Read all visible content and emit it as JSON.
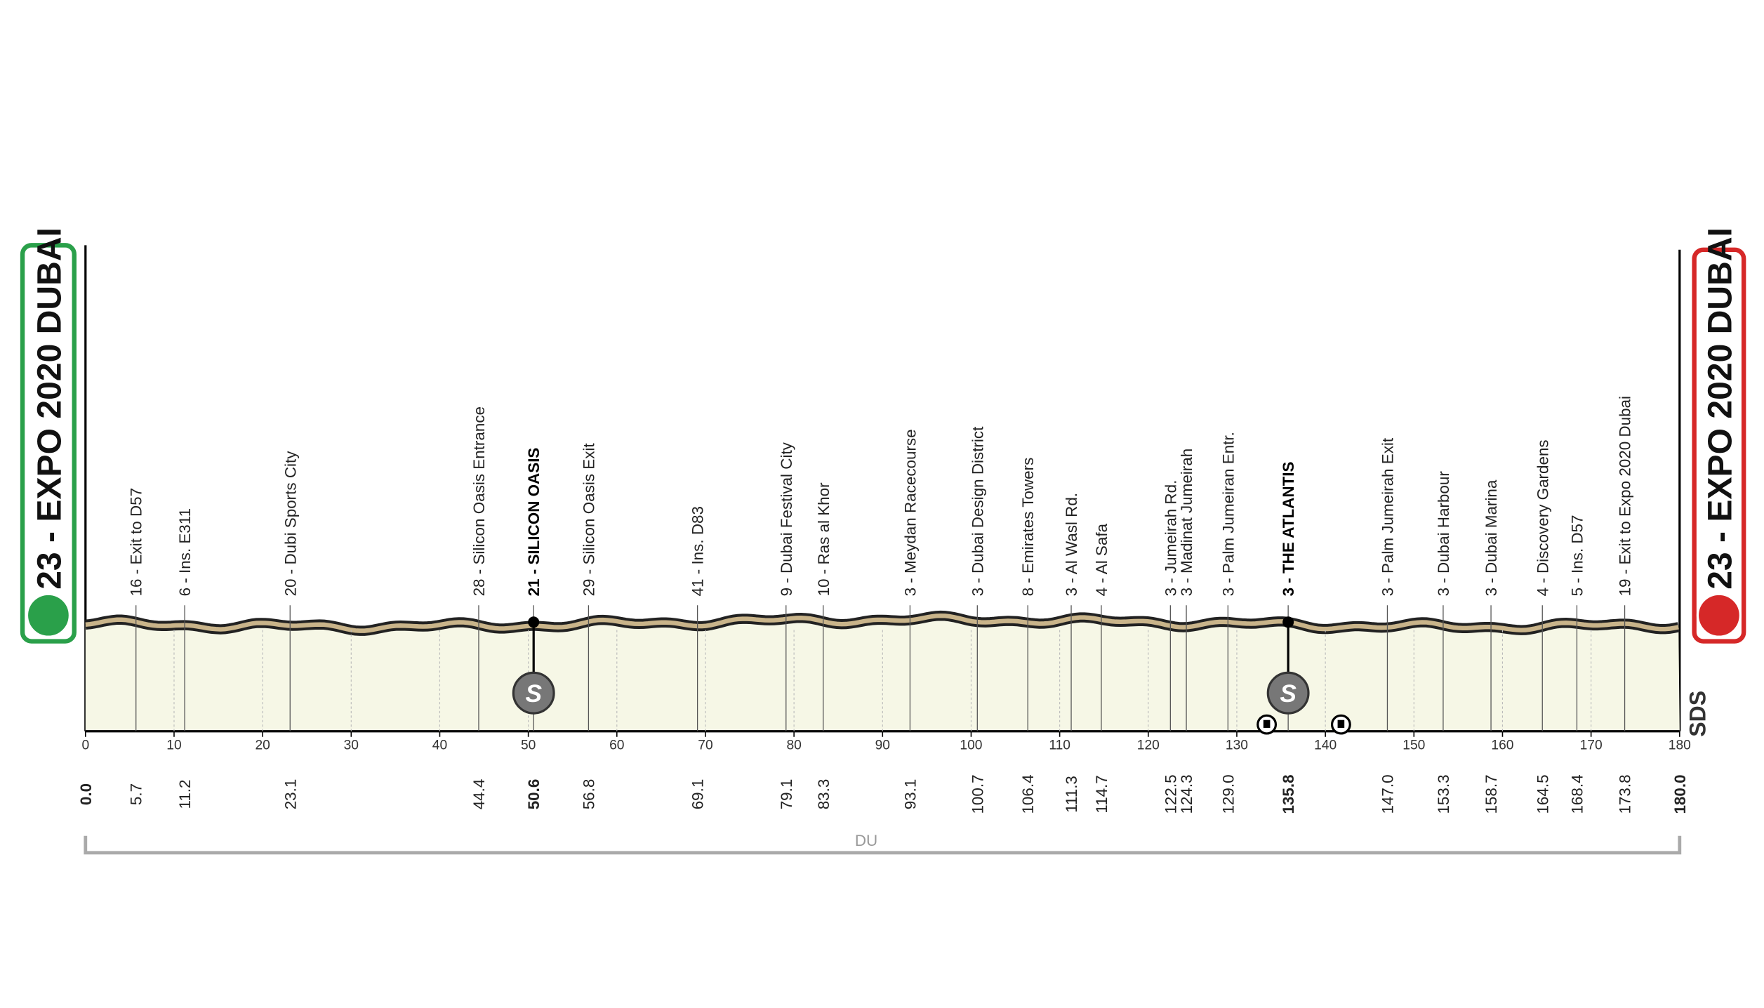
{
  "start": "23 - EXPO 2020 DUBAI",
  "finish": "23 - EXPO 2020 DUBAI",
  "region": "DU",
  "logo": "SDS",
  "axis": {
    "xlim": [
      0,
      180
    ],
    "xticks": [
      0,
      10,
      20,
      30,
      40,
      50,
      60,
      70,
      80,
      90,
      100,
      110,
      120,
      130,
      140,
      150,
      160,
      170,
      180
    ]
  },
  "waypoints": [
    {
      "km": "0.0",
      "bold": true
    },
    {
      "km": "5.7",
      "name": "16 - Exit to D57"
    },
    {
      "km": "11.2",
      "name": "6 - Ins. E311"
    },
    {
      "km": "23.1",
      "name": "20 - Dubi Sports City"
    },
    {
      "km": "44.4",
      "name": "28 - Silicon Oasis Entrance"
    },
    {
      "km": "50.6",
      "name": "21 - SILICON OASIS",
      "bold": true,
      "sprint": "S"
    },
    {
      "km": "56.8",
      "name": "29 - Silicon Oasis Exit"
    },
    {
      "km": "69.1",
      "name": "41 - Ins. D83"
    },
    {
      "km": "79.1",
      "name": "9 - Dubai Festival City"
    },
    {
      "km": "83.3",
      "name": "10 - Ras al Khor"
    },
    {
      "km": "93.1",
      "name": "3 - Meydan Racecourse"
    },
    {
      "km": "100.7",
      "name": "3 - Dubai Design District"
    },
    {
      "km": "106.4",
      "name": "8 - Emirates Towers"
    },
    {
      "km": "111.3",
      "name": "3 - Al Wasl Rd."
    },
    {
      "km": "114.7",
      "name": "4 - Al Safa"
    },
    {
      "km": "122.5",
      "name": "3 - Jumeirah Rd."
    },
    {
      "km": "124.3",
      "name": "3 - Madinat Jumeirah"
    },
    {
      "km": "129.0",
      "name": "3 - Palm Jumeiran Entr."
    },
    {
      "km": "135.8",
      "name": "3 - THE ATLANTIS",
      "bold": true,
      "sprint": "S"
    },
    {
      "km": "147.0",
      "name": "3 - Palm Jumeirah Exit"
    },
    {
      "km": "153.3",
      "name": "3 - Dubai Harbour"
    },
    {
      "km": "158.7",
      "name": "3 - Dubai Marina"
    },
    {
      "km": "164.5",
      "name": "4 - Discovery Gardens"
    },
    {
      "km": "168.4",
      "name": "5 - Ins. D57"
    },
    {
      "km": "173.8",
      "name": "19 - Exit to Expo 2020 Dubai"
    },
    {
      "km": "180.0",
      "bold": true
    }
  ]
}
